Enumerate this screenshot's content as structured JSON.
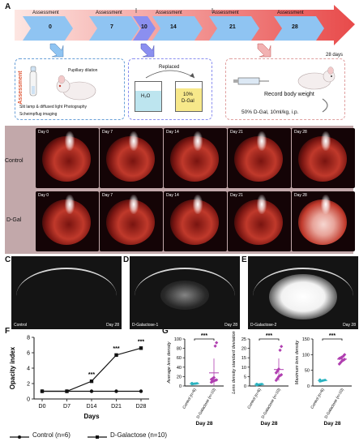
{
  "panels": {
    "A": "A",
    "B": "B",
    "C": "C",
    "D": "D",
    "E": "E",
    "F": "F",
    "G": "G"
  },
  "timeline": {
    "days": [
      "0",
      "7",
      "10",
      "14",
      "21",
      "28"
    ],
    "assessment_label": "Assessment",
    "end_label": "28 days"
  },
  "box_assessment": {
    "vertical_label": "Assessment",
    "pupillary": "Pupillary dilation",
    "line1": "Slit lamp & diffused light Photography",
    "line2": "Scheimpflug imaging"
  },
  "box_replaced": {
    "title": "Replaced",
    "water": "H₂O",
    "dgal_pct": "10%",
    "dgal": "D-Gal"
  },
  "box_weight": {
    "title": "Record body weight",
    "dose": "50% D-Gal, 10ml/kg, i.p."
  },
  "panel_b": {
    "row_labels": [
      "Control",
      "D-Gal"
    ],
    "day_labels": [
      "Day 0",
      "Day 7",
      "Day 14",
      "Day 21",
      "Day 28"
    ]
  },
  "panel_cde": {
    "c_label": "Control",
    "c_day": "Day 28",
    "d_label": "D-Galactose-1",
    "d_day": "Day 28",
    "e_label": "D-Galactose-2",
    "e_day": "Day 28"
  },
  "legend": {
    "control": "Control (n=6)",
    "dgal": "D-Galactose (n=10)"
  },
  "chart_data": [
    {
      "type": "line",
      "ylabel": "Opacity index",
      "xlabel": "Days",
      "categories": [
        "D0",
        "D7",
        "D14",
        "D21",
        "D28"
      ],
      "yticks": [
        "0",
        "2",
        "4",
        "6",
        "8"
      ],
      "ylim": [
        0,
        8
      ],
      "series": [
        {
          "name": "Control (n=6)",
          "values": [
            1,
            1,
            1,
            1,
            1
          ]
        },
        {
          "name": "D-Galactose (n=10)",
          "values": [
            1,
            1,
            2.3,
            5.7,
            6.6
          ]
        }
      ],
      "annotations": [
        "***",
        "***",
        "***"
      ],
      "color_control": "#111111",
      "color_dgal": "#111111"
    },
    {
      "type": "scatter",
      "ylabel": "Average lens density",
      "xlabel": "Day 28",
      "categories": [
        "Control (n=6)",
        "D-Galactose (n=10)"
      ],
      "yticks": [
        "0",
        "20",
        "40",
        "60",
        "80",
        "100"
      ],
      "ylim": [
        0,
        100
      ],
      "control": [
        4,
        4.5,
        5,
        5.2,
        5.5,
        6
      ],
      "dgal": [
        8,
        10,
        11,
        12,
        13,
        14,
        16,
        18,
        85,
        92
      ],
      "significance": "***"
    },
    {
      "type": "scatter",
      "ylabel": "Lens density standard deviation",
      "xlabel": "Day 28",
      "categories": [
        "Control (n=6)",
        "D-Galactose (n=10)"
      ],
      "yticks": [
        "0",
        "5",
        "10",
        "15",
        "20",
        "25"
      ],
      "ylim": [
        0,
        25
      ],
      "control": [
        0.5,
        0.7,
        0.8,
        0.9,
        1.0,
        1.1
      ],
      "dgal": [
        3,
        4,
        5,
        5.5,
        6,
        7,
        8,
        9,
        19,
        21
      ],
      "significance": "***"
    },
    {
      "type": "scatter",
      "ylabel": "Maximum lens density",
      "xlabel": "Day 28",
      "categories": [
        "Control (n=6)",
        "D-Galactose (n=10)"
      ],
      "yticks": [
        "0",
        "50",
        "100",
        "150"
      ],
      "ylim": [
        0,
        150
      ],
      "control": [
        15,
        16,
        17,
        18,
        19,
        20
      ],
      "dgal": [
        70,
        75,
        80,
        82,
        85,
        88,
        90,
        92,
        95,
        100
      ],
      "significance": "***"
    }
  ]
}
